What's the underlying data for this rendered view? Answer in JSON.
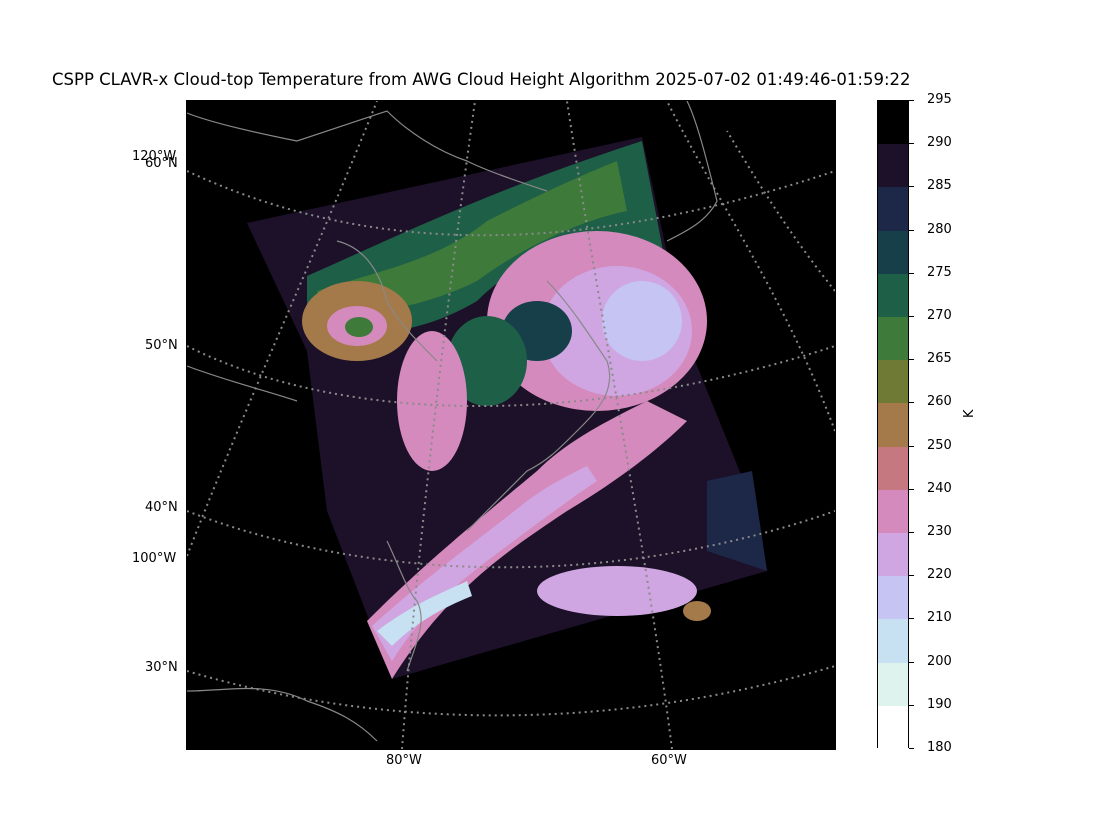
{
  "figure": {
    "title": "CSPP CLAVR-x Cloud-top Temperature from AWG Cloud Height Algorithm 2025-07-02 01:49:46-01:59:22"
  },
  "map": {
    "left_labels": [
      "120°W",
      "60°N",
      "50°N",
      "40°N",
      "100°W",
      "30°N"
    ],
    "bottom_labels": [
      "80°W",
      "60°W"
    ]
  },
  "colorbar": {
    "unit": "K",
    "ticks": [
      "295",
      "290",
      "285",
      "280",
      "275",
      "270",
      "265",
      "260",
      "250",
      "240",
      "230",
      "220",
      "210",
      "200",
      "190",
      "180"
    ],
    "colors": [
      "#000000",
      "#1c1129",
      "#1d2849",
      "#173f49",
      "#1e5f47",
      "#3e7a3a",
      "#6f7b35",
      "#a57a4a",
      "#c5787f",
      "#d58abd",
      "#cfa6e2",
      "#c5c4f3",
      "#c8e1f2",
      "#dff3ee",
      "#ffffff"
    ]
  }
}
